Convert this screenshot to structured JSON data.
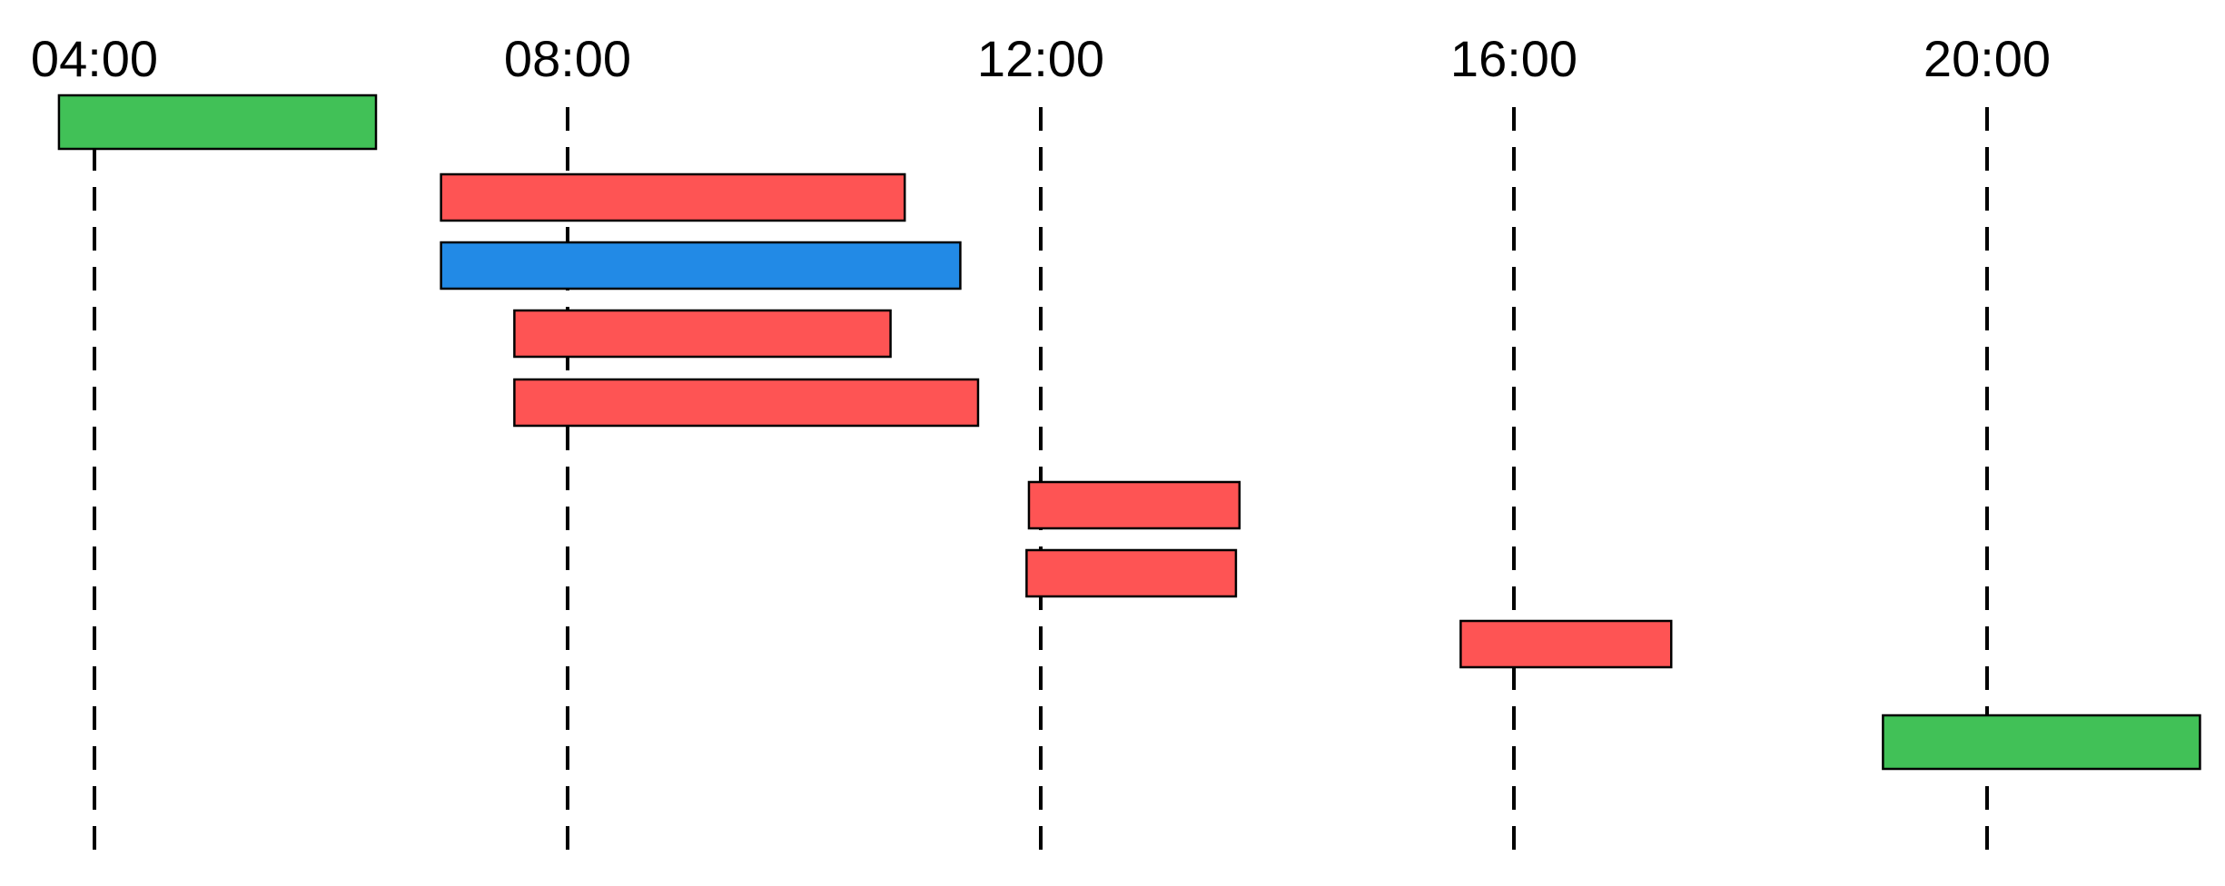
{
  "chart_data": {
    "type": "gantt",
    "x_axis": {
      "unit": "hours",
      "ticks": [
        {
          "value": 4,
          "label": "04:00"
        },
        {
          "value": 8,
          "label": "08:00"
        },
        {
          "value": 12,
          "label": "12:00"
        },
        {
          "value": 16,
          "label": "16:00"
        },
        {
          "value": 20,
          "label": "20:00"
        }
      ],
      "range": [
        3.3,
        22.1
      ]
    },
    "grid": "vertical dashed lines at tick positions",
    "bars": [
      {
        "start": 3.7,
        "end": 6.38,
        "color": "#41c157",
        "tall": true
      },
      {
        "start": 6.93,
        "end": 10.85,
        "color": "#fe5454"
      },
      {
        "start": 6.93,
        "end": 11.32,
        "color": "#228ae6"
      },
      {
        "start": 7.55,
        "end": 10.73,
        "color": "#fe5454"
      },
      {
        "start": 7.55,
        "end": 11.47,
        "color": "#fe5454"
      },
      {
        "start": 11.9,
        "end": 13.68,
        "color": "#fe5454"
      },
      {
        "start": 11.88,
        "end": 13.65,
        "color": "#fe5454"
      },
      {
        "start": 15.55,
        "end": 17.33,
        "color": "#fe5454"
      },
      {
        "start": 19.12,
        "end": 21.8,
        "color": "#41c157",
        "tall": true
      }
    ]
  }
}
